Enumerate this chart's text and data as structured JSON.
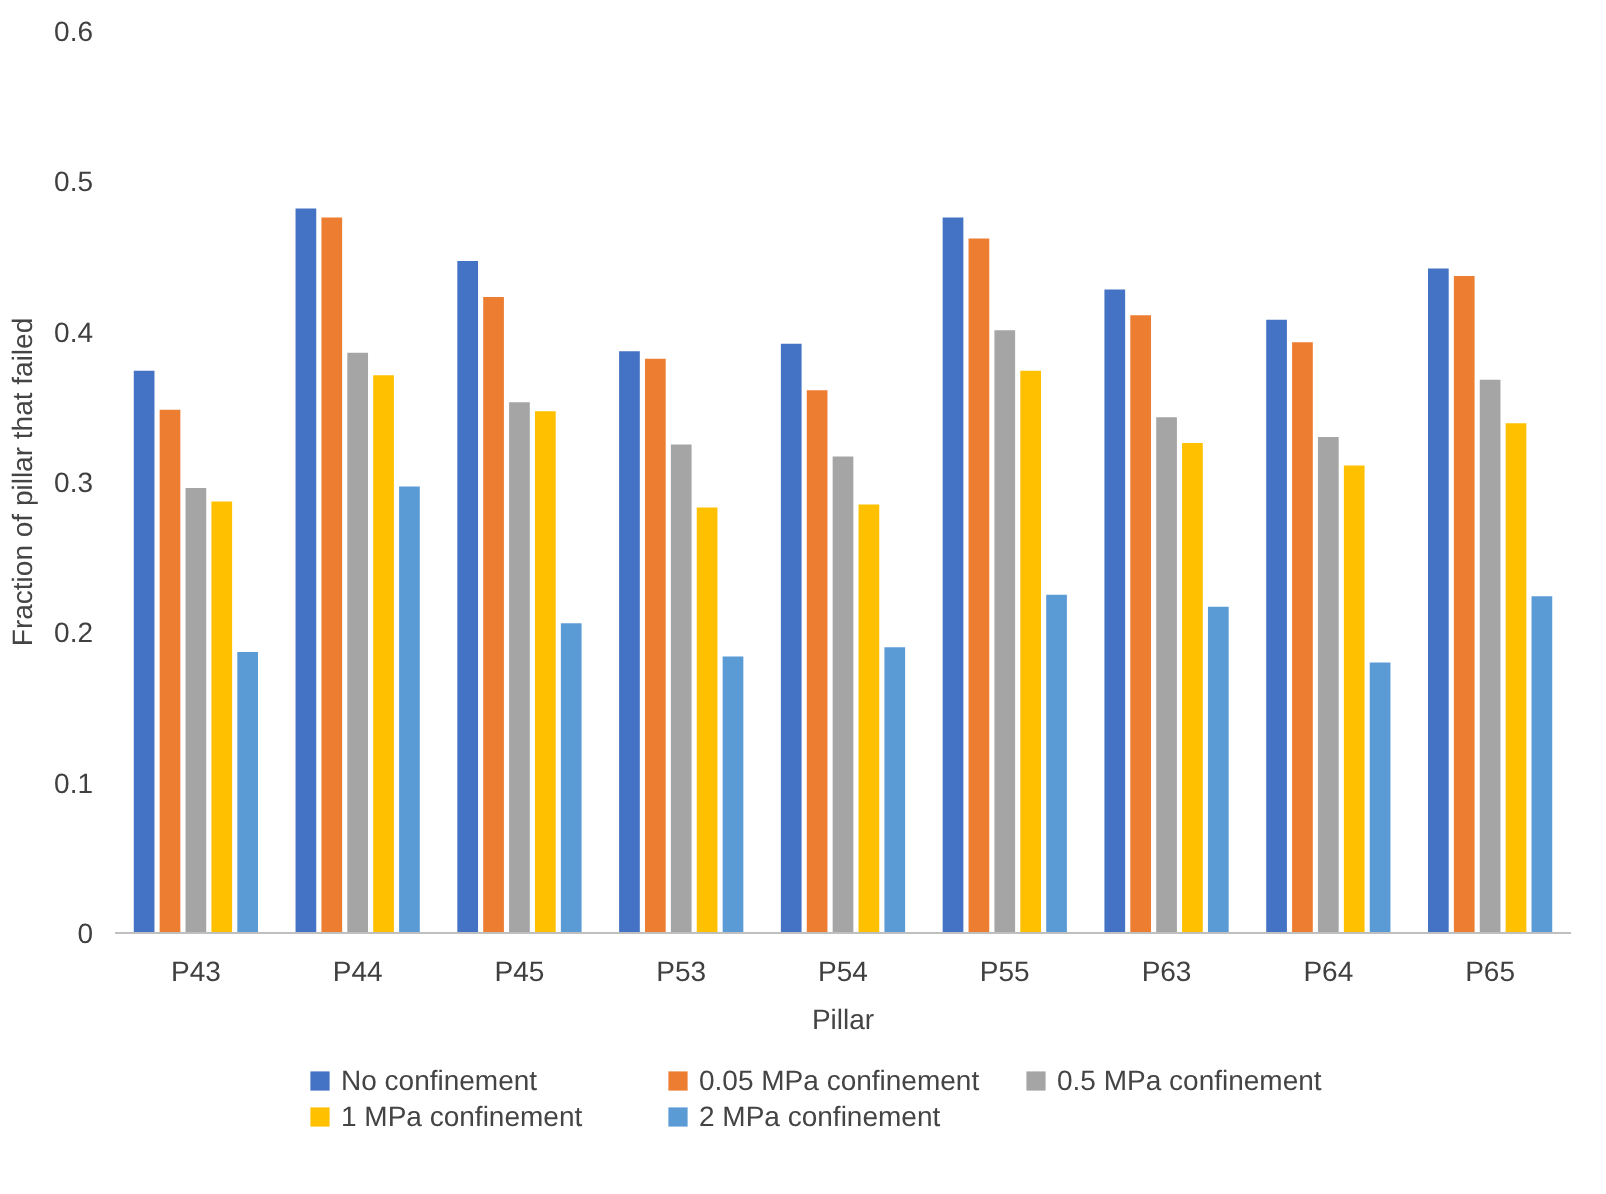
{
  "chart_data": {
    "type": "bar",
    "xlabel": "Pillar",
    "ylabel": "Fraction of pillar that failed",
    "categories": [
      "P43",
      "P44",
      "P45",
      "P53",
      "P54",
      "P55",
      "P63",
      "P64",
      "P65"
    ],
    "series": [
      {
        "name": "No confinement",
        "color": "#4472c4",
        "values": [
          0.374,
          0.482,
          0.447,
          0.387,
          0.392,
          0.476,
          0.428,
          0.408,
          0.442
        ]
      },
      {
        "name": "0.05 MPa confinement",
        "color": "#ed7d31",
        "values": [
          0.348,
          0.476,
          0.423,
          0.382,
          0.361,
          0.462,
          0.411,
          0.393,
          0.437
        ]
      },
      {
        "name": "0.5 MPa confinement",
        "color": "#a5a5a5",
        "values": [
          0.296,
          0.386,
          0.353,
          0.325,
          0.317,
          0.401,
          0.343,
          0.33,
          0.368
        ]
      },
      {
        "name": "1 MPa confinement",
        "color": "#ffc000",
        "values": [
          0.287,
          0.371,
          0.347,
          0.283,
          0.285,
          0.374,
          0.326,
          0.311,
          0.339
        ]
      },
      {
        "name": "2 MPa confinement",
        "color": "#5b9bd5",
        "values": [
          0.187,
          0.297,
          0.206,
          0.184,
          0.19,
          0.225,
          0.217,
          0.18,
          0.224
        ]
      }
    ],
    "ylim": [
      0,
      0.6
    ],
    "yticks": [
      0,
      0.1,
      0.2,
      0.3,
      0.4,
      0.5,
      0.6
    ],
    "grid": false,
    "legend": "bottom"
  }
}
